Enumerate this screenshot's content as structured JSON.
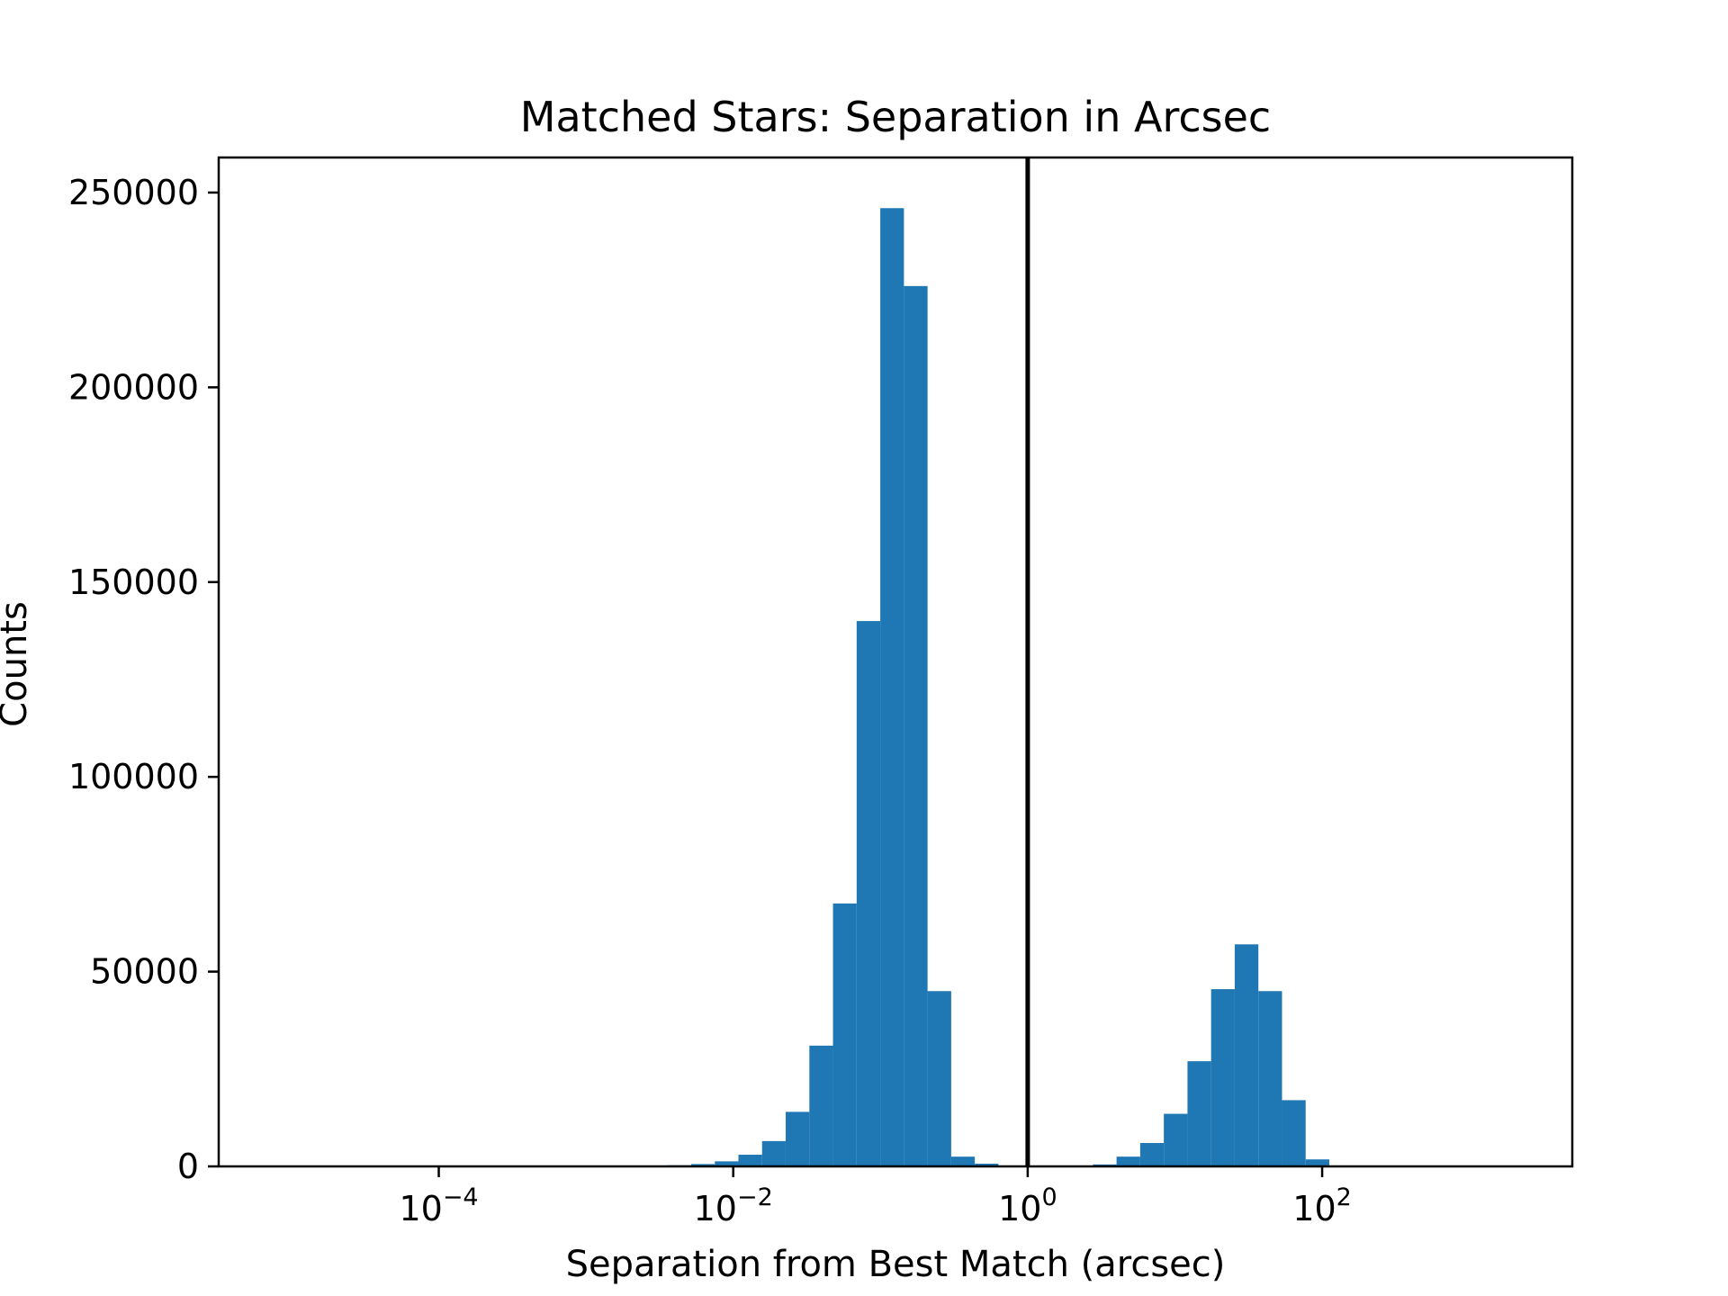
{
  "chart_data": {
    "type": "bar",
    "title": "Matched Stars: Separation in Arcsec",
    "xlabel": "Separation from Best Match (arcsec)",
    "ylabel": "Counts",
    "x_scale": "log",
    "xlim": [
      3.2e-06,
      5000
    ],
    "ylim": [
      0,
      259000
    ],
    "grid": false,
    "x_ticks": [
      {
        "value": 0.0001,
        "base": "10",
        "exp": "−4"
      },
      {
        "value": 0.01,
        "base": "10",
        "exp": "−2"
      },
      {
        "value": 1,
        "base": "10",
        "exp": "0"
      },
      {
        "value": 100,
        "base": "10",
        "exp": "2"
      }
    ],
    "y_ticks": [
      {
        "value": 0,
        "label": "0"
      },
      {
        "value": 50000,
        "label": "50000"
      },
      {
        "value": 100000,
        "label": "100000"
      },
      {
        "value": 150000,
        "label": "150000"
      },
      {
        "value": 200000,
        "label": "200000"
      },
      {
        "value": 250000,
        "label": "250000"
      }
    ],
    "vline": {
      "x": 1,
      "color": "#000000"
    },
    "bar_color": "#1f77b4",
    "bins": [
      {
        "x0": 0.00358,
        "x1": 0.00518,
        "count": 300
      },
      {
        "x0": 0.00518,
        "x1": 0.0075,
        "count": 600
      },
      {
        "x0": 0.0075,
        "x1": 0.01085,
        "count": 1300
      },
      {
        "x0": 0.01085,
        "x1": 0.0157,
        "count": 3000
      },
      {
        "x0": 0.0157,
        "x1": 0.0227,
        "count": 6500
      },
      {
        "x0": 0.0227,
        "x1": 0.0329,
        "count": 14000
      },
      {
        "x0": 0.0329,
        "x1": 0.0476,
        "count": 31000
      },
      {
        "x0": 0.0476,
        "x1": 0.0689,
        "count": 67500
      },
      {
        "x0": 0.0689,
        "x1": 0.0997,
        "count": 140000
      },
      {
        "x0": 0.0997,
        "x1": 0.1443,
        "count": 246000
      },
      {
        "x0": 0.1443,
        "x1": 0.2088,
        "count": 226000
      },
      {
        "x0": 0.2088,
        "x1": 0.3022,
        "count": 45000
      },
      {
        "x0": 0.3022,
        "x1": 0.4373,
        "count": 2500
      },
      {
        "x0": 0.4373,
        "x1": 0.633,
        "count": 700
      },
      {
        "x0": 2.773,
        "x1": 4.013,
        "count": 500
      },
      {
        "x0": 4.013,
        "x1": 5.808,
        "count": 2500
      },
      {
        "x0": 5.808,
        "x1": 8.406,
        "count": 6000
      },
      {
        "x0": 8.406,
        "x1": 12.17,
        "count": 13500
      },
      {
        "x0": 12.17,
        "x1": 17.61,
        "count": 27000
      },
      {
        "x0": 17.61,
        "x1": 25.48,
        "count": 45500
      },
      {
        "x0": 25.48,
        "x1": 36.88,
        "count": 57000
      },
      {
        "x0": 36.88,
        "x1": 53.37,
        "count": 45000
      },
      {
        "x0": 53.37,
        "x1": 77.25,
        "count": 17000
      },
      {
        "x0": 77.25,
        "x1": 111.8,
        "count": 1800
      }
    ]
  }
}
